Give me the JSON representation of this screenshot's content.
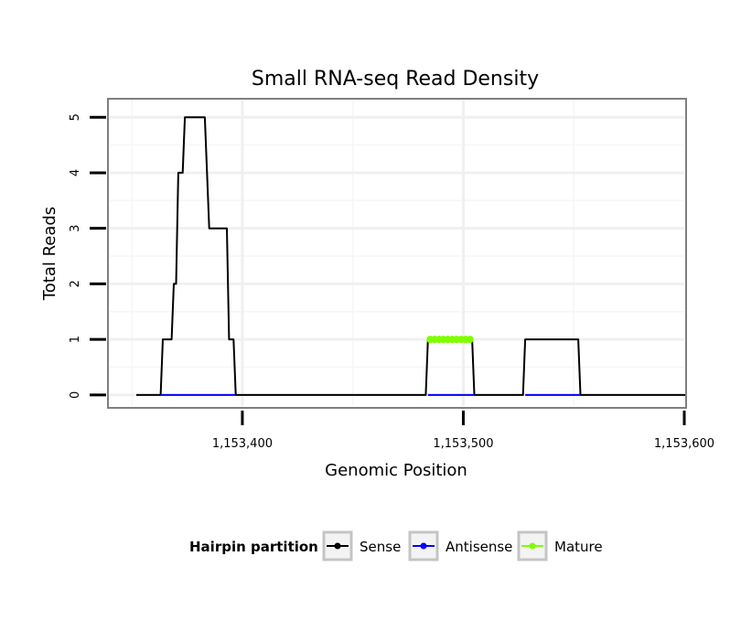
{
  "chart_data": {
    "type": "line",
    "title": "Small RNA-seq Read Density",
    "xlabel": "Genomic Position",
    "ylabel": "Total Reads",
    "xlim": [
      1153340,
      1153600
    ],
    "ylim": [
      -0.2,
      5.3
    ],
    "x_ticks": [
      {
        "value": 1153400,
        "label": "1,153,400"
      },
      {
        "value": 1153500,
        "label": "1,153,500"
      },
      {
        "value": 1153600,
        "label": "1,153,600"
      }
    ],
    "y_ticks": [
      {
        "value": 0,
        "label": "0"
      },
      {
        "value": 1,
        "label": "1"
      },
      {
        "value": 2,
        "label": "2"
      },
      {
        "value": 3,
        "label": "3"
      },
      {
        "value": 4,
        "label": "4"
      },
      {
        "value": 5,
        "label": "5"
      }
    ],
    "grid": true,
    "legend": {
      "title": "Hairpin partition",
      "position": "bottom"
    },
    "series": [
      {
        "name": "Sense",
        "color": "#000000",
        "points": [
          [
            1153352,
            0
          ],
          [
            1153363,
            0
          ],
          [
            1153364,
            1
          ],
          [
            1153368,
            1
          ],
          [
            1153369,
            2
          ],
          [
            1153370,
            2
          ],
          [
            1153371,
            4
          ],
          [
            1153373,
            4
          ],
          [
            1153374,
            5
          ],
          [
            1153383,
            5
          ],
          [
            1153385,
            3
          ],
          [
            1153393,
            3
          ],
          [
            1153394,
            1
          ],
          [
            1153396,
            1
          ],
          [
            1153397,
            0
          ],
          [
            1153483,
            0
          ],
          [
            1153484,
            1
          ],
          [
            1153504,
            1
          ],
          [
            1153505,
            0
          ],
          [
            1153527,
            0
          ],
          [
            1153528,
            1
          ],
          [
            1153552,
            1
          ],
          [
            1153553,
            0
          ],
          [
            1153601,
            0
          ]
        ]
      },
      {
        "name": "Antisense",
        "color": "#0000ff",
        "segments": [
          [
            [
              1153363,
              0
            ],
            [
              1153397,
              0
            ]
          ],
          [
            [
              1153484,
              0
            ],
            [
              1153505,
              0
            ]
          ],
          [
            [
              1153528,
              0
            ],
            [
              1153553,
              0
            ]
          ]
        ]
      },
      {
        "name": "Mature",
        "color": "#7fff00",
        "points": [
          [
            1153485,
            1
          ],
          [
            1153487,
            1
          ],
          [
            1153489,
            1
          ],
          [
            1153491,
            1
          ],
          [
            1153493,
            1
          ],
          [
            1153495,
            1
          ],
          [
            1153497,
            1
          ],
          [
            1153499,
            1
          ],
          [
            1153501,
            1
          ],
          [
            1153503,
            1
          ]
        ]
      }
    ]
  }
}
